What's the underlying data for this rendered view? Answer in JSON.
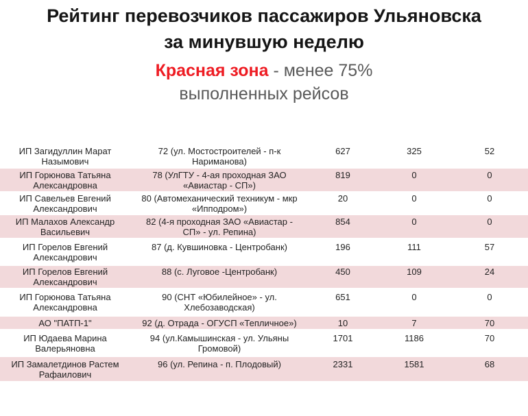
{
  "header": {
    "title_line1": "Рейтинг перевозчиков пассажиров Ульяновска",
    "title_line2": "за минувшую неделю",
    "zone_label": "Красная зона",
    "zone_description": " - менее 75%",
    "zone_description_line2": "выполненных рейсов"
  },
  "colors": {
    "zone_red": "#ee1c23",
    "row_pink": "#f2d9db",
    "subtitle_gray": "#595959"
  },
  "table": {
    "rows": [
      {
        "carrier": "ИП Загидуллин Марат\nНазымович",
        "route": "72 (ул. Мостостроителей - п-к\nНариманова)",
        "values": [
          "627",
          "325",
          "52"
        ]
      },
      {
        "carrier": "ИП Горюнова Татьяна\nАлександровна",
        "route": "78 (УлГТУ - 4-ая проходная ЗАО\n«Авиастар - СП»)",
        "values": [
          "819",
          "0",
          "0"
        ]
      },
      {
        "carrier": "ИП Савельев Евгений\nАлександрович",
        "route": "80 (Автомеханический техникум - мкр\n«Ипподром»)",
        "values": [
          "20",
          "0",
          "0"
        ]
      },
      {
        "carrier": "ИП Малахов Александр\nВасильевич",
        "route": "82 (4-я проходная ЗАО «Авиастар -\nСП» - ул. Репина)",
        "values": [
          "854",
          "0",
          "0"
        ]
      },
      {
        "carrier": "ИП Горелов Евгений\nАлександрович",
        "route": "87 (д. Кувшиновка - Центробанк)",
        "values": [
          "196",
          "111",
          "57"
        ]
      },
      {
        "carrier": "ИП Горелов Евгений\nАлександрович",
        "route": "88 (с. Луговое -Центробанк)",
        "values": [
          "450",
          "109",
          "24"
        ]
      },
      {
        "carrier": "ИП Горюнова Татьяна\nАлександровна",
        "route": "90 (СНТ «Юбилейное» - ул.\nХлебозаводская)",
        "values": [
          "651",
          "0",
          "0"
        ]
      },
      {
        "carrier": "АО \"ПАТП-1\"",
        "route": "92 (д. Отрада - ОГУСП «Тепличное»)",
        "values": [
          "10",
          "7",
          "70"
        ]
      },
      {
        "carrier": "ИП Юдаева Марина\nВалерьяновна",
        "route": "94 (ул.Камышинская - ул. Ульяны\nГромовой)",
        "values": [
          "1701",
          "1186",
          "70"
        ]
      },
      {
        "carrier": "ИП Замалетдинов Растем\nРафаилович",
        "route": "96 (ул. Репина - п. Плодовый)",
        "values": [
          "2331",
          "1581",
          "68"
        ]
      }
    ]
  }
}
